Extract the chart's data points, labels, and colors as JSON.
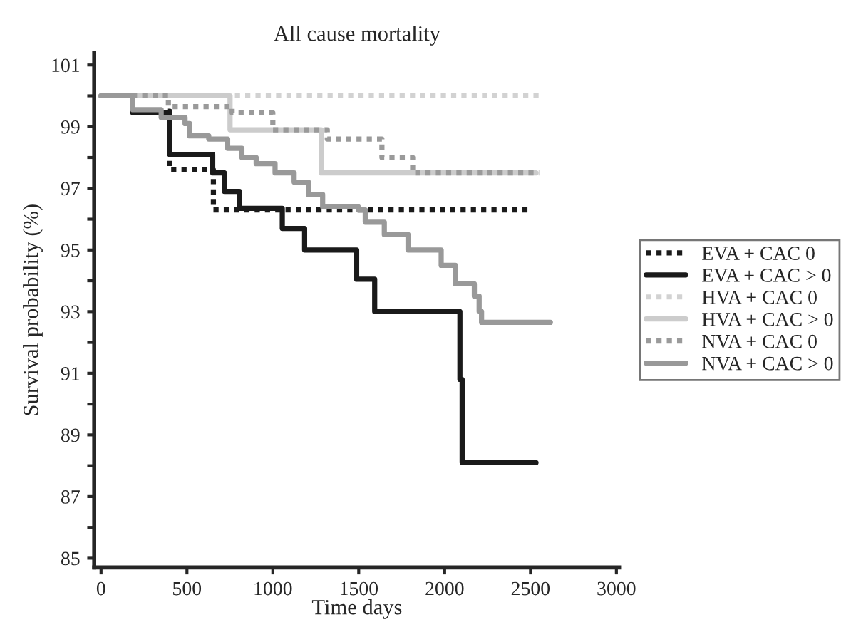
{
  "chart_data": {
    "type": "step",
    "title": "All cause mortality",
    "xlabel": "Time days",
    "ylabel": "Survival probability (%)",
    "xlim": [
      -40,
      3020
    ],
    "xticks": [
      0,
      500,
      1000,
      1500,
      2000,
      2500,
      3000
    ],
    "ylim": [
      84.7,
      101.4
    ],
    "yticks": [
      85,
      {
        "value": 86,
        "label": null
      },
      87,
      {
        "value": 88,
        "label": null
      },
      89,
      {
        "value": 90,
        "label": null
      },
      91,
      {
        "value": 92,
        "label": null
      },
      93,
      {
        "value": 94,
        "label": null
      },
      95,
      {
        "value": 96,
        "label": null
      },
      97,
      {
        "value": 98,
        "label": null
      },
      99,
      {
        "value": 100,
        "label": null
      },
      101
    ],
    "grid": false,
    "legend": "right",
    "series": [
      {
        "name": "EVA + CAC 0",
        "color": "#1a1a1a",
        "line_style": "dotted",
        "x": [
          0,
          185,
          400,
          654,
          2505
        ],
        "values": [
          100,
          99.5,
          97.6,
          96.3,
          96.3
        ]
      },
      {
        "name": "EVA + CAC > 0",
        "color": "#1a1a1a",
        "line_style": "solid",
        "x": [
          0,
          185,
          400,
          650,
          718,
          806,
          1055,
          1185,
          1488,
          1593,
          2089,
          2102,
          2532
        ],
        "values": [
          100,
          99.45,
          98.1,
          97.5,
          96.9,
          96.35,
          95.7,
          95.0,
          94.05,
          93.0,
          90.8,
          88.1,
          88.1
        ]
      },
      {
        "name": "HVA + CAC 0",
        "color": "#d2d2d2",
        "line_style": "dotted",
        "x": [
          0,
          2560
        ],
        "values": [
          100,
          100
        ]
      },
      {
        "name": "HVA + CAC > 0",
        "color": "#cccccc",
        "line_style": "solid",
        "x": [
          0,
          751,
          1282,
          2532
        ],
        "values": [
          100,
          98.9,
          97.5,
          97.5
        ]
      },
      {
        "name": "NVA + CAC 0",
        "color": "#9a9a9a",
        "line_style": "dotted",
        "x": [
          0,
          392,
          763,
          1000,
          1317,
          1635,
          1814,
          2550
        ],
        "values": [
          100,
          99.65,
          99.45,
          98.9,
          98.6,
          98.0,
          97.5,
          97.5
        ]
      },
      {
        "name": "NVA + CAC > 0",
        "color": "#999999",
        "line_style": "solid",
        "x": [
          0,
          185,
          350,
          489,
          516,
          627,
          737,
          820,
          903,
          1013,
          1124,
          1207,
          1290,
          1497,
          1538,
          1649,
          1787,
          1980,
          2063,
          2173,
          2201,
          2215,
          2616
        ],
        "values": [
          100,
          99.55,
          99.3,
          99.1,
          98.7,
          98.6,
          98.3,
          98.0,
          97.8,
          97.5,
          97.2,
          96.8,
          96.4,
          96.3,
          95.9,
          95.5,
          95.0,
          94.5,
          93.9,
          93.5,
          93.0,
          92.65,
          92.65
        ]
      }
    ]
  }
}
